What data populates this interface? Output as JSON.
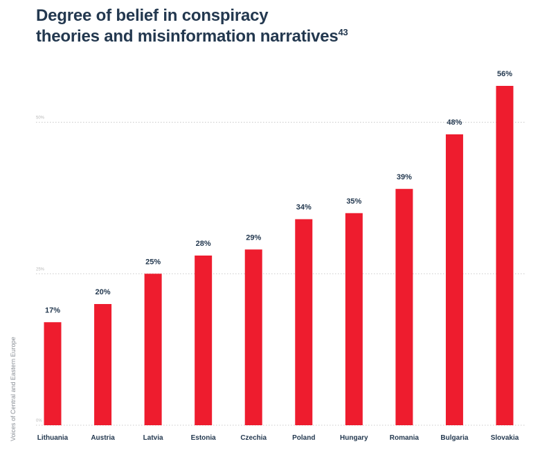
{
  "title": {
    "line1": "Degree of belief in conspiracy",
    "line2": "theories and misinformation narratives",
    "footnote": "43"
  },
  "side_label": "Voices of Central and Eastern Europe",
  "colors": {
    "bar": "#ee1c2e",
    "text": "#23384f",
    "grid": "#c9c9c9",
    "tick": "#b8b8b8"
  },
  "chart_data": {
    "type": "bar",
    "categories": [
      "Lithuania",
      "Austria",
      "Latvia",
      "Estonia",
      "Czechia",
      "Poland",
      "Hungary",
      "Romania",
      "Bulgaria",
      "Slovakia"
    ],
    "values": [
      17,
      20,
      25,
      28,
      29,
      34,
      35,
      39,
      48,
      56
    ],
    "data_labels": [
      "17%",
      "20%",
      "25%",
      "28%",
      "29%",
      "34%",
      "35%",
      "39%",
      "48%",
      "56%"
    ],
    "yticks": [
      0,
      25,
      50
    ],
    "ytick_labels": [
      "0%",
      "25%",
      "50%"
    ],
    "ylim": [
      0,
      56
    ],
    "grid": true
  }
}
